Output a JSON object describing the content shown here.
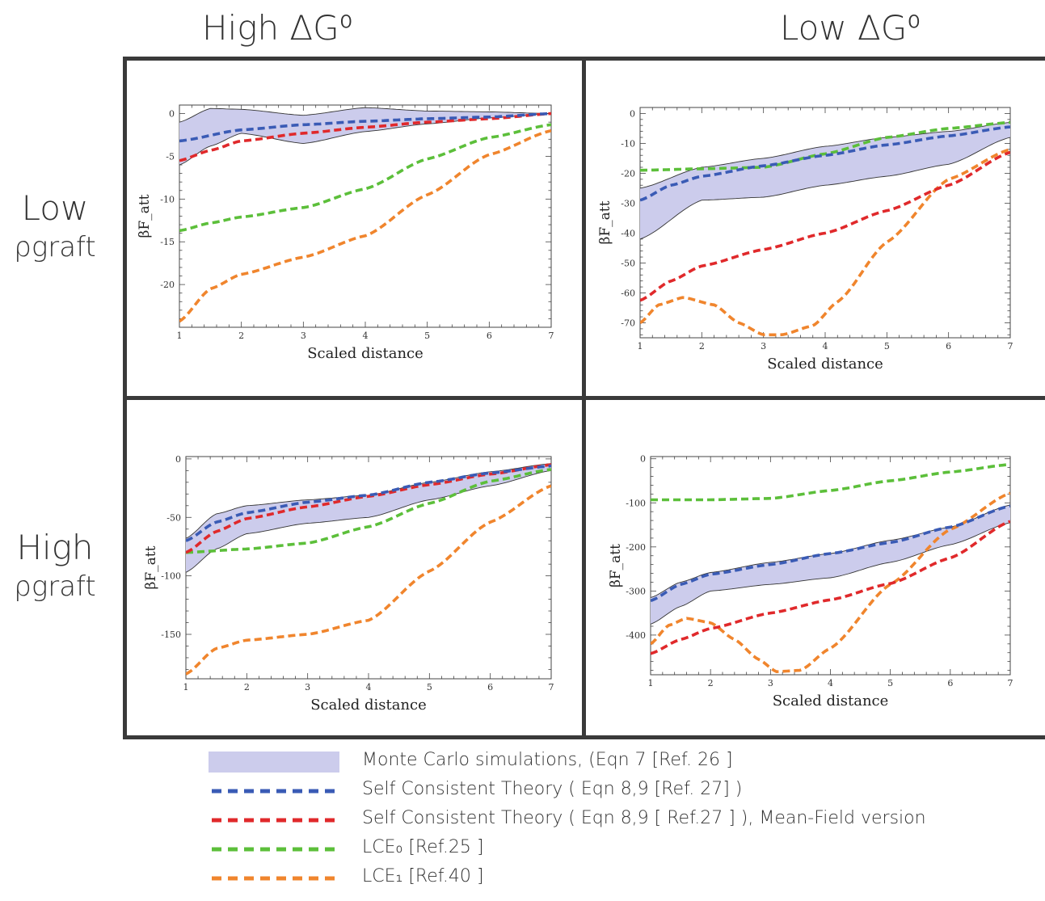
{
  "headers": {
    "col_left": "High ΔG⁰",
    "col_right": "Low ΔG⁰",
    "row_top_line1": "Low",
    "row_top_line2": "ρgraft",
    "row_bottom_line1": "High",
    "row_bottom_line2": "ρgraft"
  },
  "colors": {
    "band_fill": "#ccccec",
    "band_edge": "#333333",
    "sct": "#3a5bb5",
    "sct_mf": "#e0292b",
    "lce0": "#5cbf3a",
    "lce1": "#f0852d"
  },
  "legend": [
    {
      "key": "band",
      "label": "Monte Carlo simulations, (Eqn 7 [Ref. 26 ]"
    },
    {
      "key": "sct",
      "label": "Self Consistent Theory ( Eqn 8,9 [Ref. 27] )"
    },
    {
      "key": "sct_mf",
      "label": "Self Consistent Theory ( Eqn 8,9 [ Ref.27 ] ), Mean-Field version"
    },
    {
      "key": "lce0",
      "label": "LCE₀ [Ref.25 ]"
    },
    {
      "key": "lce1",
      "label": "LCE₁ [Ref.40 ]"
    }
  ],
  "chart_data": [
    {
      "type": "line",
      "panel": "top-left",
      "xlabel": "Scaled distance",
      "ylabel": "βF_att",
      "xlim": [
        1,
        7
      ],
      "ylim": [
        -25,
        1
      ],
      "xticks": [
        1,
        2,
        3,
        4,
        5,
        6,
        7
      ],
      "yticks": [
        0,
        -5,
        -10,
        -15,
        -20
      ],
      "band": {
        "x": [
          1,
          1.5,
          2,
          3,
          4,
          5,
          6,
          7
        ],
        "upper": [
          -1,
          0.6,
          0.5,
          -0.2,
          0.7,
          0.3,
          0.2,
          0
        ],
        "lower": [
          -6,
          -3.8,
          -2.3,
          -3.5,
          -2.1,
          -1.2,
          -0.5,
          0
        ]
      },
      "series": [
        {
          "key": "sct",
          "x": [
            1,
            2,
            3,
            4,
            5,
            6,
            7
          ],
          "y": [
            -3.2,
            -1.9,
            -1.3,
            -0.9,
            -0.6,
            -0.4,
            0
          ]
        },
        {
          "key": "sct_mf",
          "x": [
            1,
            1.5,
            2,
            3,
            4,
            5,
            6,
            7
          ],
          "y": [
            -5.5,
            -4.3,
            -3.2,
            -2.3,
            -1.6,
            -1.0,
            -0.6,
            0
          ]
        },
        {
          "key": "lce0",
          "x": [
            1,
            1.5,
            2,
            3,
            4,
            5,
            6,
            7
          ],
          "y": [
            -13.7,
            -12.8,
            -12.1,
            -11.0,
            -8.8,
            -5.3,
            -2.8,
            -1.3
          ]
        },
        {
          "key": "lce1",
          "x": [
            1,
            1.5,
            2,
            3,
            4,
            5,
            6,
            7
          ],
          "y": [
            -24.3,
            -20.5,
            -18.8,
            -16.8,
            -14.3,
            -9.5,
            -4.8,
            -2.0
          ]
        }
      ]
    },
    {
      "type": "line",
      "panel": "top-right",
      "xlabel": "Scaled distance",
      "ylabel": "βF_att",
      "xlim": [
        1,
        7
      ],
      "ylim": [
        -75,
        2
      ],
      "xticks": [
        1,
        2,
        3,
        4,
        5,
        6,
        7
      ],
      "yticks": [
        0,
        -10,
        -20,
        -30,
        -40,
        -50,
        -60,
        -70
      ],
      "band": {
        "x": [
          1,
          2,
          3,
          4,
          5,
          6,
          7
        ],
        "upper": [
          -25,
          -18,
          -15,
          -11,
          -8,
          -6,
          -3
        ],
        "lower": [
          -42,
          -29,
          -28,
          -24,
          -21,
          -17,
          -8
        ]
      },
      "series": [
        {
          "key": "sct",
          "x": [
            1,
            1.5,
            2,
            3,
            4,
            5,
            6,
            7
          ],
          "y": [
            -29,
            -24,
            -21,
            -17.5,
            -14,
            -10.5,
            -7.5,
            -4.5
          ]
        },
        {
          "key": "sct_mf",
          "x": [
            1,
            1.5,
            2,
            3,
            4,
            5,
            6,
            7
          ],
          "y": [
            -62.5,
            -56,
            -51,
            -45.5,
            -40,
            -32.5,
            -24,
            -13
          ]
        },
        {
          "key": "lce0",
          "x": [
            1,
            2,
            3,
            4,
            5,
            6,
            7
          ],
          "y": [
            -19,
            -18.5,
            -18,
            -13.5,
            -8,
            -5,
            -3
          ]
        },
        {
          "key": "lce1",
          "x": [
            1,
            1.3,
            1.7,
            2.2,
            2.6,
            3.0,
            3.3,
            3.8,
            4.2,
            5,
            6,
            7
          ],
          "y": [
            -70,
            -64,
            -61.5,
            -64,
            -70,
            -74,
            -74,
            -71,
            -63,
            -43,
            -22,
            -12
          ]
        }
      ]
    },
    {
      "type": "line",
      "panel": "bottom-left",
      "xlabel": "Scaled distance",
      "ylabel": "βF_att",
      "xlim": [
        1,
        7
      ],
      "ylim": [
        -188,
        2
      ],
      "xticks": [
        1,
        2,
        3,
        4,
        5,
        6,
        7
      ],
      "yticks": [
        0,
        -50,
        -100,
        -150
      ],
      "band": {
        "x": [
          1,
          1.5,
          2,
          3,
          4,
          5,
          6,
          7
        ],
        "upper": [
          -68,
          -47,
          -40,
          -35,
          -31,
          -20,
          -11,
          -4
        ],
        "lower": [
          -97,
          -77,
          -64,
          -55,
          -50,
          -35,
          -23,
          -10
        ]
      },
      "series": [
        {
          "key": "sct",
          "x": [
            1,
            1.5,
            2,
            3,
            4,
            5,
            6,
            7
          ],
          "y": [
            -70,
            -54,
            -46,
            -37,
            -31,
            -20,
            -12,
            -6
          ]
        },
        {
          "key": "sct_mf",
          "x": [
            1,
            1.5,
            2,
            3,
            4,
            5,
            6,
            7
          ],
          "y": [
            -80,
            -62,
            -51,
            -41,
            -32,
            -22,
            -13,
            -5
          ]
        },
        {
          "key": "lce0",
          "x": [
            1,
            2,
            3,
            4,
            5,
            6,
            7
          ],
          "y": [
            -80,
            -77,
            -72,
            -58,
            -38,
            -19,
            -9
          ]
        },
        {
          "key": "lce1",
          "x": [
            1,
            1.5,
            2,
            3,
            4,
            5,
            6,
            7
          ],
          "y": [
            -184,
            -162,
            -155,
            -150,
            -138,
            -96,
            -54,
            -23
          ]
        }
      ]
    },
    {
      "type": "line",
      "panel": "bottom-right",
      "xlabel": "Scaled distance",
      "ylabel": "βF_att",
      "xlim": [
        1,
        7
      ],
      "ylim": [
        -490,
        5
      ],
      "xticks": [
        1,
        2,
        3,
        4,
        5,
        6,
        7
      ],
      "yticks": [
        0,
        -100,
        -200,
        -300,
        -400
      ],
      "band": {
        "x": [
          1,
          1.5,
          2,
          3,
          4,
          5,
          6,
          7
        ],
        "upper": [
          -315,
          -280,
          -258,
          -235,
          -215,
          -185,
          -155,
          -105
        ],
        "lower": [
          -375,
          -335,
          -300,
          -285,
          -270,
          -235,
          -195,
          -145
        ]
      },
      "series": [
        {
          "key": "sct",
          "x": [
            1,
            1.5,
            2,
            3,
            4,
            5,
            6,
            7
          ],
          "y": [
            -322,
            -285,
            -262,
            -240,
            -215,
            -190,
            -155,
            -107
          ]
        },
        {
          "key": "sct_mf",
          "x": [
            1,
            1.5,
            2,
            3,
            4,
            5,
            6,
            7
          ],
          "y": [
            -442,
            -410,
            -385,
            -350,
            -320,
            -283,
            -225,
            -142
          ]
        },
        {
          "key": "lce0",
          "x": [
            1,
            2,
            3,
            4,
            5,
            6,
            7
          ],
          "y": [
            -93,
            -93,
            -90,
            -72,
            -50,
            -30,
            -13
          ]
        },
        {
          "key": "lce1",
          "x": [
            1,
            1.3,
            1.6,
            2.0,
            2.4,
            2.8,
            3.1,
            3.5,
            4,
            5,
            6,
            7
          ],
          "y": [
            -420,
            -378,
            -362,
            -372,
            -410,
            -455,
            -483,
            -480,
            -430,
            -285,
            -160,
            -78
          ]
        }
      ]
    }
  ]
}
